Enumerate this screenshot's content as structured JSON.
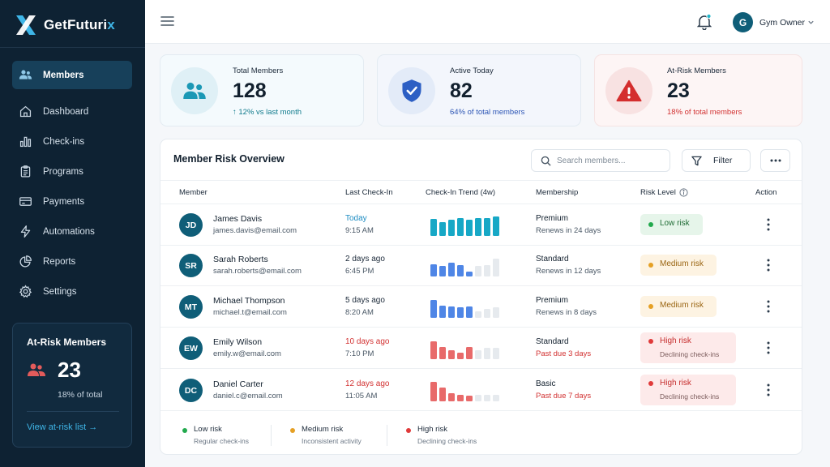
{
  "brand": {
    "name_main": "GetFuturi",
    "name_accent": "x",
    "accent_color": "#3fb6e8"
  },
  "sidebar": {
    "items": [
      {
        "label": "Members",
        "icon": "users-icon",
        "active": true
      },
      {
        "label": "Dashboard",
        "icon": "home-icon"
      },
      {
        "label": "Check-ins",
        "icon": "bar-chart-icon"
      },
      {
        "label": "Programs",
        "icon": "clipboard-icon"
      },
      {
        "label": "Payments",
        "icon": "credit-card-icon"
      },
      {
        "label": "Automations",
        "icon": "lightning-icon"
      },
      {
        "label": "Reports",
        "icon": "pie-chart-icon"
      },
      {
        "label": "Settings",
        "icon": "gear-icon"
      }
    ],
    "risk_card": {
      "title": "At-Risk Members",
      "count": "23",
      "pct": "18% of total",
      "link": "View at-risk list →"
    }
  },
  "header": {
    "user_initial": "G",
    "user_name": "Gym Owner",
    "notification_dot": true
  },
  "kpis": [
    {
      "title": "Total Members",
      "value": "128",
      "sub": "↑  12% vs last month",
      "sub_color": "#0f7a8c",
      "icon": "users-icon"
    },
    {
      "title": "Active Today",
      "value": "82",
      "sub": "64% of total members",
      "sub_color": "#2d56b5",
      "icon": "shield-check-icon"
    },
    {
      "title": "At-Risk Members",
      "value": "23",
      "sub": "18% of total members",
      "sub_color": "#d23232",
      "icon": "warning-icon"
    }
  ],
  "panel": {
    "title": "Member Risk Overview",
    "search_placeholder": "Search members...",
    "filter_label": "Filter",
    "columns": [
      "Member",
      "Last Check-In",
      "Check-In Trend (4w)",
      "Membership",
      "Risk Level",
      "Action"
    ]
  },
  "rows": [
    {
      "initials": "JD",
      "name": "James Davis",
      "email": "james.davis@email.com",
      "check_day": "Today",
      "check_time": "9:15 AM",
      "check_color": "#1b8bc2",
      "membership": "Premium",
      "renewal": "Renews in 24 days",
      "renewal_color": "#4a5866",
      "risk": "low",
      "risk_label": "Low risk",
      "risk_sub": "",
      "trend_color": "#17a8c6",
      "trend": [
        0.75,
        0.6,
        0.7,
        0.8,
        0.7,
        0.8,
        0.8,
        0.85
      ]
    },
    {
      "initials": "SR",
      "name": "Sarah Roberts",
      "email": "sarah.roberts@email.com",
      "check_day": "2 days ago",
      "check_time": "6:45 PM",
      "check_color": "#1c2a3a",
      "membership": "Standard",
      "renewal": "Renews in 12 days",
      "renewal_color": "#4a5866",
      "risk": "med",
      "risk_label": "Medium risk",
      "risk_sub": "",
      "trend_color": "#4f86e6",
      "trend": [
        0.55,
        0.45,
        0.6,
        0.5,
        0.2,
        0.45,
        0.5,
        0.8
      ]
    },
    {
      "initials": "MT",
      "name": "Michael Thompson",
      "email": "michael.t@email.com",
      "check_day": "5 days ago",
      "check_time": "8:20 AM",
      "check_color": "#1c2a3a",
      "membership": "Premium",
      "renewal": "Renews in 8 days",
      "renewal_color": "#4a5866",
      "risk": "med",
      "risk_label": "Medium risk",
      "risk_sub": "",
      "trend_color": "#4f86e6",
      "trend": [
        0.8,
        0.55,
        0.5,
        0.45,
        0.5,
        0.3,
        0.4,
        0.45
      ]
    },
    {
      "initials": "EW",
      "name": "Emily Wilson",
      "email": "emily.w@email.com",
      "check_day": "10 days ago",
      "check_time": "7:10 PM",
      "check_color": "#d23232",
      "membership": "Standard",
      "renewal": "Past due 3 days",
      "renewal_color": "#d23232",
      "risk": "high",
      "risk_label": "High risk",
      "risk_sub": "Declining check-ins",
      "trend_color": "#e86a6a",
      "trend": [
        0.8,
        0.55,
        0.4,
        0.3,
        0.55,
        0.4,
        0.5,
        0.5
      ]
    },
    {
      "initials": "DC",
      "name": "Daniel Carter",
      "email": "daniel.c@email.com",
      "check_day": "12 days ago",
      "check_time": "11:05 AM",
      "check_color": "#d23232",
      "membership": "Basic",
      "renewal": "Past due 7 days",
      "renewal_color": "#d23232",
      "risk": "high",
      "risk_label": "High risk",
      "risk_sub": "Declining check-ins",
      "trend_color": "#e86a6a",
      "trend": [
        0.85,
        0.6,
        0.35,
        0.3,
        0.25,
        0.3,
        0.3,
        0.3
      ]
    }
  ],
  "legend": [
    {
      "label": "Low risk",
      "sub": "Regular check-ins",
      "color": "#22a94d"
    },
    {
      "label": "Medium risk",
      "sub": "Inconsistent activity",
      "color": "#e5a024"
    },
    {
      "label": "High risk",
      "sub": "Declining check-ins",
      "color": "#e03a3a"
    }
  ]
}
